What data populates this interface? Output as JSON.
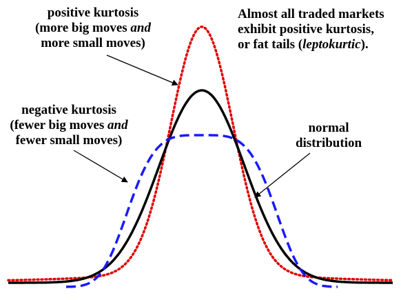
{
  "labels": {
    "positive": {
      "line1": "positive kurtosis",
      "line2_a": "(more big moves ",
      "line2_em": "and",
      "line3": "more small moves)"
    },
    "negative": {
      "line1": "negative kurtosis",
      "line2_a": "(fewer big moves ",
      "line2_em": "and",
      "line3": "fewer small moves)"
    },
    "note": {
      "line1": "Almost all traded markets",
      "line2": "exhibit positive kurtosis,",
      "line3_a": "or fat tails (",
      "line3_em": "leptokurtic",
      "line3_b": ")."
    },
    "normal": {
      "line1": "normal",
      "line2": "distribution"
    }
  },
  "curves": [
    {
      "id": "normal",
      "color": "#000000",
      "dash": "solid"
    },
    {
      "id": "positive",
      "color": "#e00000",
      "dash": "dotted"
    },
    {
      "id": "negative",
      "color": "#1a1aff",
      "dash": "dashed"
    }
  ]
}
